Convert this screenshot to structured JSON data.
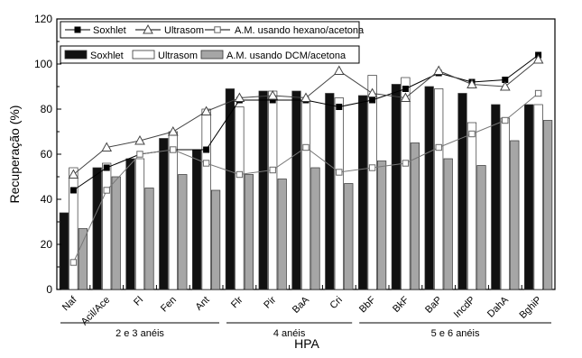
{
  "chart_data": {
    "type": "bar",
    "xlabel": "HPA",
    "ylabel": "Recuperação (%)",
    "ylim": [
      0,
      120
    ],
    "yticks": [
      0,
      20,
      40,
      60,
      80,
      100,
      120
    ],
    "categories": [
      "Naf",
      "Acil/Ace",
      "Fl",
      "Fen",
      "Ant",
      "Flr",
      "Pir",
      "BaA",
      "Cri",
      "BbF",
      "BkF",
      "BaP",
      "IncdP",
      "DahA",
      "BghiP"
    ],
    "groups": [
      {
        "label": "2 e 3 anéis",
        "from": 0,
        "to": 4
      },
      {
        "label": "4 anéis",
        "from": 5,
        "to": 8
      },
      {
        "label": "5 e 6 anéis",
        "from": 9,
        "to": 14
      }
    ],
    "bar_series": [
      {
        "name": "Soxhlet",
        "color": "#111111",
        "values": [
          34,
          54,
          58,
          67,
          62,
          89,
          88,
          88,
          87,
          86,
          91,
          90,
          87,
          82,
          82
        ]
      },
      {
        "name": "Ultrasom",
        "color": "#ffffff",
        "values": [
          54,
          56,
          58,
          70,
          80,
          81,
          88,
          84,
          85,
          95,
          94,
          89,
          74,
          76,
          82
        ]
      },
      {
        "name": "A.M.  usando DCM/acetona",
        "color": "#a6a6a6",
        "values": [
          27,
          50,
          45,
          51,
          44,
          51,
          49,
          54,
          47,
          57,
          65,
          58,
          55,
          66,
          75
        ]
      }
    ],
    "line_series": [
      {
        "name": "Soxhlet",
        "marker": "filled-square",
        "values": [
          44,
          54,
          60,
          62,
          62,
          84,
          84,
          84,
          81,
          84,
          89,
          96,
          92,
          93,
          104
        ]
      },
      {
        "name": "Ultrasom",
        "marker": "open-triangle",
        "values": [
          51,
          63,
          66,
          70,
          79,
          85,
          86,
          85,
          97,
          87,
          85,
          97,
          91,
          90,
          102
        ]
      },
      {
        "name": "A.M. usando hexano/acetona",
        "marker": "open-square",
        "values": [
          12,
          44,
          60,
          62,
          56,
          51,
          53,
          63,
          52,
          54,
          56,
          63,
          69,
          75,
          87
        ]
      }
    ],
    "legend_top": [
      "Soxhlet",
      "Ultrasom",
      "A.M. usando hexano/acetona"
    ],
    "legend_bottom": [
      "Soxhlet",
      "Ultrasom",
      "A.M.  usando DCM/acetona"
    ],
    "legend_position": "top-left",
    "grid": false
  }
}
